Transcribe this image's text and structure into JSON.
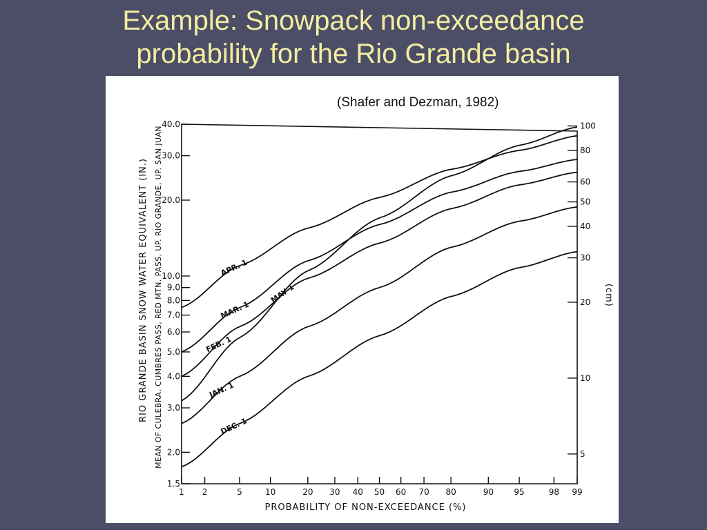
{
  "slide": {
    "title_line1": "Example: Snowpack non-exceedance",
    "title_line2": "probability for the Rio Grande basin",
    "citation": "(Shafer and Dezman, 1982)",
    "background_color": "#4b4e66",
    "title_color": "#f3eda2"
  },
  "chart_data": {
    "type": "line",
    "title": "",
    "xlabel": "PROBABILITY OF NON-EXCEEDANCE (%)",
    "ylabel": "RIO GRANDE BASIN SNOW WATER EQUIVALENT (IN.)",
    "ylabel_sub": "MEAN OF CULEBRA, CUMBRES PASS, RED MTN. PASS, UP. RIO GRANDE, UP. SAN JUAN",
    "y2label": "(cm)",
    "x_scale": "normal-probability",
    "y_scale": "log",
    "xlim": [
      1,
      99
    ],
    "ylim": [
      1.5,
      40
    ],
    "x_ticks": [
      1,
      2,
      5,
      10,
      20,
      30,
      40,
      50,
      60,
      70,
      80,
      90,
      95,
      98,
      99
    ],
    "x_tick_labels": [
      "1",
      "2",
      "5",
      "10",
      "20",
      "30",
      "40",
      "50",
      "60",
      "70",
      "80",
      "90",
      "95",
      "98",
      "99"
    ],
    "y_ticks": [
      1.5,
      2.0,
      3.0,
      4.0,
      5.0,
      6.0,
      7.0,
      8.0,
      9.0,
      10.0,
      20.0,
      30.0,
      40.0
    ],
    "y_tick_labels": [
      "1.5",
      "2.0",
      "3.0",
      "4.0",
      "5.0",
      "6.0",
      "7.0",
      "8.0",
      "9.0",
      "10.0",
      "20.0",
      "30.0",
      "40.0"
    ],
    "y2_ticks_cm": [
      5,
      10,
      20,
      30,
      40,
      50,
      60,
      80,
      100
    ],
    "y2_tick_labels": [
      "5",
      "10",
      "20",
      "30",
      "40",
      "50",
      "60",
      "80",
      "100"
    ],
    "grid": false,
    "series": [
      {
        "name": "APR. 1",
        "x": [
          1,
          5,
          20,
          50,
          80,
          95,
          99
        ],
        "y": [
          7.5,
          11.0,
          15.5,
          20.5,
          26.5,
          31.5,
          36.0
        ]
      },
      {
        "name": "MAR. 1",
        "x": [
          1,
          5,
          20,
          50,
          80,
          95,
          99
        ],
        "y": [
          5.0,
          7.5,
          11.5,
          16.0,
          21.5,
          26.0,
          29.0
        ]
      },
      {
        "name": "FEB. 1",
        "x": [
          1,
          5,
          20,
          50,
          80,
          95,
          99
        ],
        "y": [
          4.0,
          6.3,
          9.8,
          13.5,
          18.5,
          23.0,
          25.8
        ]
      },
      {
        "name": "JAN. 1",
        "x": [
          1,
          5,
          20,
          50,
          80,
          95,
          99
        ],
        "y": [
          2.6,
          4.0,
          6.3,
          9.0,
          13.0,
          16.5,
          18.8
        ]
      },
      {
        "name": "DEC. 1",
        "x": [
          1,
          5,
          20,
          50,
          80,
          95,
          99
        ],
        "y": [
          1.75,
          2.6,
          4.0,
          5.8,
          8.3,
          10.8,
          12.5
        ]
      },
      {
        "name": "MAY 1",
        "x": [
          1,
          5,
          20,
          50,
          80,
          95,
          99
        ],
        "y": [
          3.2,
          5.7,
          10.5,
          17.0,
          25.0,
          33.0,
          39.0
        ]
      }
    ]
  }
}
